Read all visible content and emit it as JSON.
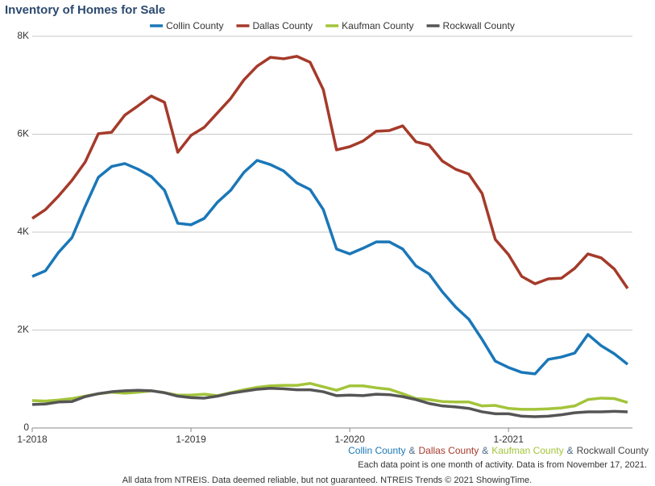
{
  "chart_data": {
    "type": "line",
    "title": "Inventory of Homes for Sale",
    "categories": [
      "1-2018",
      null,
      null,
      null,
      null,
      null,
      null,
      null,
      null,
      null,
      null,
      null,
      "1-2019",
      null,
      null,
      null,
      null,
      null,
      null,
      null,
      null,
      null,
      null,
      null,
      "1-2020",
      null,
      null,
      null,
      null,
      null,
      null,
      null,
      null,
      null,
      null,
      null,
      "1-2021",
      null,
      null,
      null,
      null,
      null,
      null,
      null,
      null,
      null
    ],
    "series": [
      {
        "name": "Collin County",
        "color": "#1a77b8",
        "values": [
          3095,
          3210,
          3590,
          3885,
          4525,
          5120,
          5340,
          5400,
          5285,
          5135,
          4855,
          4180,
          4150,
          4280,
          4610,
          4855,
          5220,
          5465,
          5380,
          5250,
          5005,
          4870,
          4460,
          3655,
          3555,
          3670,
          3800,
          3800,
          3655,
          3310,
          3145,
          2780,
          2470,
          2220,
          1810,
          1365,
          1235,
          1135,
          1105,
          1400,
          1450,
          1530,
          1910,
          1680,
          1515,
          1300
        ]
      },
      {
        "name": "Dallas County",
        "color": "#a53a2a",
        "values": [
          4280,
          4460,
          4740,
          5055,
          5430,
          6010,
          6040,
          6390,
          6580,
          6780,
          6650,
          5630,
          5975,
          6140,
          6435,
          6730,
          7110,
          7390,
          7570,
          7540,
          7590,
          7470,
          6910,
          5680,
          5745,
          5860,
          6060,
          6075,
          6170,
          5845,
          5780,
          5450,
          5285,
          5185,
          4790,
          3850,
          3540,
          3095,
          2945,
          3045,
          3060,
          3260,
          3555,
          3475,
          3245,
          2850
        ]
      },
      {
        "name": "Kaufman County",
        "color": "#a3c43a",
        "values": [
          560,
          550,
          570,
          600,
          650,
          700,
          730,
          710,
          730,
          760,
          720,
          670,
          670,
          690,
          660,
          720,
          780,
          830,
          860,
          870,
          870,
          910,
          840,
          770,
          860,
          860,
          820,
          790,
          700,
          600,
          580,
          540,
          530,
          530,
          450,
          460,
          400,
          380,
          380,
          390,
          410,
          450,
          580,
          610,
          600,
          520
        ]
      },
      {
        "name": "Rockwall County",
        "color": "#555555",
        "values": [
          480,
          490,
          530,
          540,
          640,
          700,
          740,
          760,
          770,
          760,
          720,
          650,
          620,
          610,
          650,
          710,
          750,
          790,
          810,
          800,
          780,
          780,
          740,
          660,
          670,
          660,
          690,
          680,
          640,
          580,
          500,
          450,
          430,
          400,
          330,
          290,
          290,
          240,
          230,
          240,
          270,
          310,
          330,
          330,
          340,
          330
        ]
      }
    ],
    "ylim": [
      0,
      8000
    ],
    "yticks": [
      0,
      {
        "value": 2000,
        "label": "2K"
      },
      {
        "value": 4000,
        "label": "4K"
      },
      {
        "value": 6000,
        "label": "6K"
      },
      {
        "value": 8000,
        "label": "8K"
      }
    ],
    "grid": true,
    "legend": "top",
    "separator": "&",
    "note": "Each data point is one month of activity. Data is from November 17, 2021.",
    "footer": "All data from NTREIS. Data deemed reliable, but not guaranteed. NTREIS Trends © 2021 ShowingTime."
  }
}
